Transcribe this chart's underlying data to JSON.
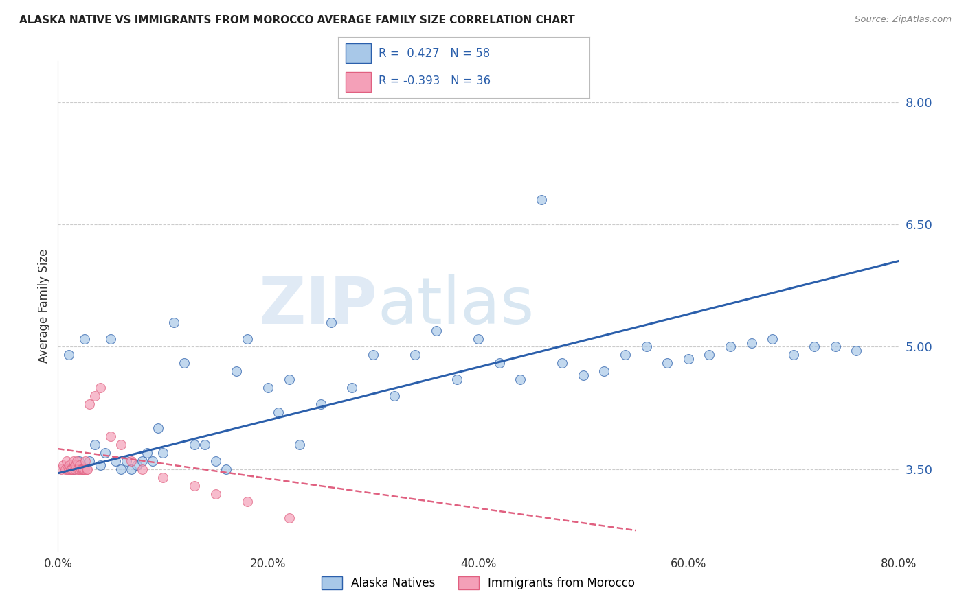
{
  "title": "ALASKA NATIVE VS IMMIGRANTS FROM MOROCCO AVERAGE FAMILY SIZE CORRELATION CHART",
  "source": "Source: ZipAtlas.com",
  "ylabel": "Average Family Size",
  "xlim": [
    0.0,
    80.0
  ],
  "ylim": [
    2.5,
    8.5
  ],
  "yticks": [
    3.5,
    5.0,
    6.5,
    8.0
  ],
  "xtick_labels": [
    "0.0%",
    "20.0%",
    "40.0%",
    "60.0%",
    "80.0%"
  ],
  "blue_R": 0.427,
  "blue_N": 58,
  "pink_R": -0.393,
  "pink_N": 36,
  "blue_color": "#A8C8E8",
  "pink_color": "#F4A0B8",
  "blue_line_color": "#2B5FAB",
  "pink_line_color": "#E06080",
  "legend1_label": "Alaska Natives",
  "legend2_label": "Immigrants from Morocco",
  "blue_scatter_x": [
    1.0,
    1.5,
    2.0,
    2.5,
    3.0,
    3.5,
    4.0,
    4.5,
    5.0,
    5.5,
    6.0,
    6.5,
    7.0,
    7.5,
    8.0,
    8.5,
    9.0,
    9.5,
    10.0,
    11.0,
    12.0,
    13.0,
    14.0,
    15.0,
    16.0,
    17.0,
    18.0,
    20.0,
    21.0,
    22.0,
    23.0,
    25.0,
    26.0,
    28.0,
    30.0,
    32.0,
    34.0,
    36.0,
    38.0,
    40.0,
    42.0,
    44.0,
    46.0,
    48.0,
    50.0,
    52.0,
    54.0,
    56.0,
    58.0,
    60.0,
    62.0,
    64.0,
    66.0,
    68.0,
    70.0,
    72.0,
    74.0,
    76.0
  ],
  "blue_scatter_y": [
    4.9,
    3.5,
    3.6,
    5.1,
    3.6,
    3.8,
    3.55,
    3.7,
    5.1,
    3.6,
    3.5,
    3.6,
    3.5,
    3.55,
    3.6,
    3.7,
    3.6,
    4.0,
    3.7,
    5.3,
    4.8,
    3.8,
    3.8,
    3.6,
    3.5,
    4.7,
    5.1,
    4.5,
    4.2,
    4.6,
    3.8,
    4.3,
    5.3,
    4.5,
    4.9,
    4.4,
    4.9,
    5.2,
    4.6,
    5.1,
    4.8,
    4.6,
    6.8,
    4.8,
    4.65,
    4.7,
    4.9,
    5.0,
    4.8,
    4.85,
    4.9,
    5.0,
    5.05,
    5.1,
    4.9,
    5.0,
    5.0,
    4.95
  ],
  "pink_scatter_x": [
    0.3,
    0.5,
    0.7,
    0.8,
    0.9,
    1.0,
    1.1,
    1.2,
    1.3,
    1.4,
    1.5,
    1.6,
    1.7,
    1.8,
    1.9,
    2.0,
    2.1,
    2.2,
    2.3,
    2.4,
    2.5,
    2.6,
    2.7,
    2.8,
    3.0,
    3.5,
    4.0,
    5.0,
    6.0,
    7.0,
    8.0,
    10.0,
    13.0,
    15.0,
    18.0,
    22.0
  ],
  "pink_scatter_y": [
    3.5,
    3.55,
    3.5,
    3.6,
    3.5,
    3.5,
    3.55,
    3.5,
    3.5,
    3.5,
    3.6,
    3.5,
    3.55,
    3.6,
    3.5,
    3.5,
    3.55,
    3.5,
    3.5,
    3.5,
    3.5,
    3.6,
    3.5,
    3.5,
    4.3,
    4.4,
    4.5,
    3.9,
    3.8,
    3.6,
    3.5,
    3.4,
    3.3,
    3.2,
    3.1,
    2.9
  ],
  "blue_trend_x0": 0,
  "blue_trend_x1": 80,
  "blue_trend_y0": 3.45,
  "blue_trend_y1": 6.05,
  "pink_trend_x0": 0,
  "pink_trend_x1": 55,
  "pink_trend_y0": 3.75,
  "pink_trend_y1": 2.75
}
